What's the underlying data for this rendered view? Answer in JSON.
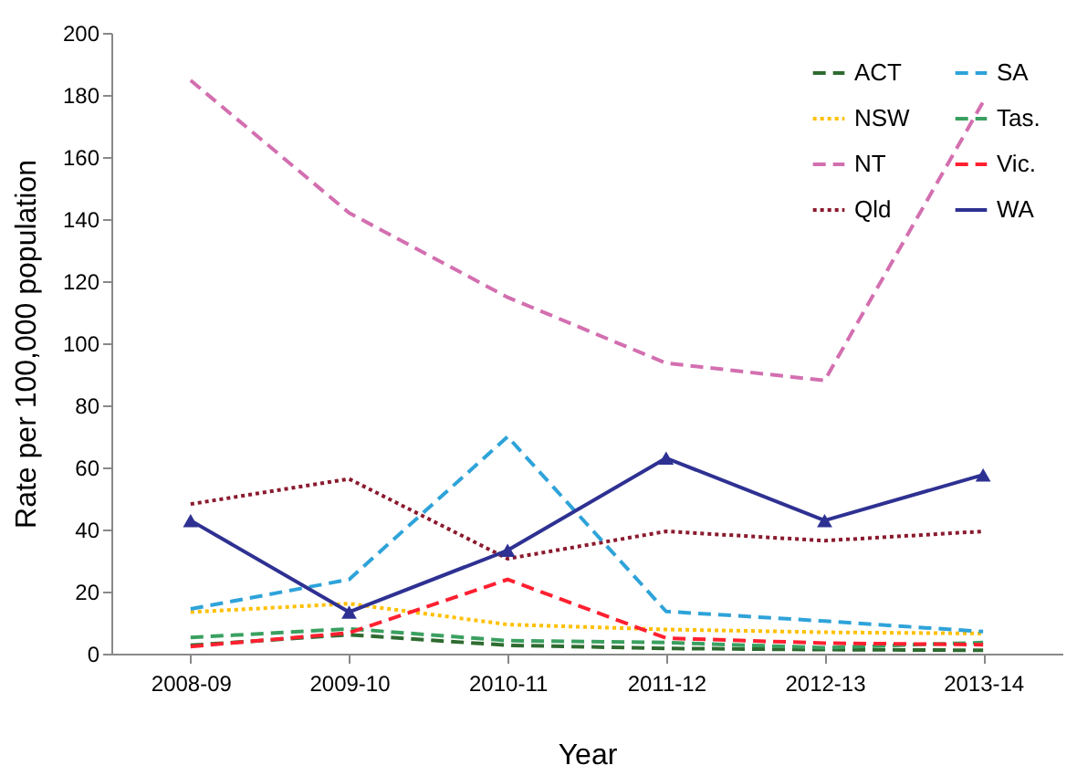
{
  "chart_data": {
    "type": "line",
    "xlabel": "Year",
    "ylabel": "Rate per 100,000 population",
    "categories": [
      "2008-09",
      "2009-10",
      "2010-11",
      "2011-12",
      "2012-13",
      "2013-14"
    ],
    "ylim": [
      0,
      200
    ],
    "yticks": [
      0,
      20,
      40,
      60,
      80,
      100,
      120,
      140,
      160,
      180,
      200
    ],
    "grid": false,
    "legend": "top right",
    "series": [
      {
        "name": "ACT",
        "color": "#2e6b30",
        "line_style": "dashed",
        "marker": "none",
        "values": [
          2.7,
          6.1,
          2.7,
          1.7,
          1.3,
          1.1
        ]
      },
      {
        "name": "NSW",
        "color": "#ffc000",
        "line_style": "dotted",
        "marker": "none",
        "values": [
          13.4,
          16.1,
          9.4,
          7.8,
          6.9,
          6.5
        ]
      },
      {
        "name": "NT",
        "color": "#d36fb0",
        "line_style": "dashed",
        "marker": "none",
        "values": [
          184.7,
          142,
          114.8,
          93.6,
          88,
          177.8
        ]
      },
      {
        "name": "Qld",
        "color": "#8b1a2e",
        "line_style": "dotted",
        "marker": "none",
        "values": [
          48.2,
          56.3,
          30.6,
          39.4,
          36.4,
          39.4
        ]
      },
      {
        "name": "SA",
        "color": "#2ea3d9",
        "line_style": "dashed",
        "marker": "none",
        "values": [
          14.4,
          23.9,
          69.9,
          13.6,
          10.5,
          7.1
        ]
      },
      {
        "name": "Tas.",
        "color": "#3aa060",
        "line_style": "dashed",
        "marker": "none",
        "values": [
          5.2,
          8,
          4.2,
          3.6,
          1.9,
          3.6
        ]
      },
      {
        "name": "Vic.",
        "color": "#ff2030",
        "line_style": "dashed",
        "marker": "none",
        "values": [
          2.3,
          6.7,
          23.9,
          5,
          3.4,
          2.9
        ]
      },
      {
        "name": "WA",
        "color": "#2e3192",
        "line_style": "solid",
        "marker": "triangle",
        "values": [
          42.9,
          13.4,
          33.3,
          63,
          42.9,
          57.6
        ]
      }
    ]
  }
}
